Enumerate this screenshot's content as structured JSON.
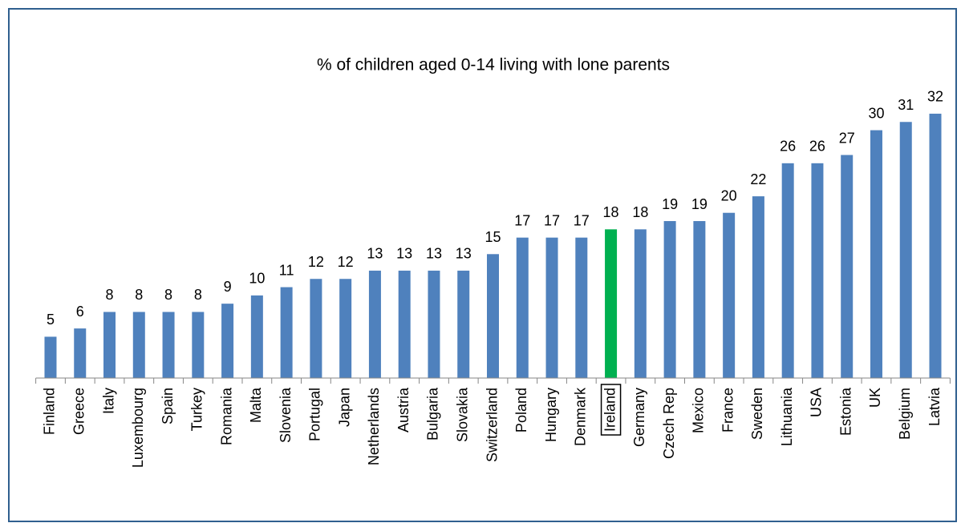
{
  "chart_data": {
    "type": "bar",
    "title": "% of children aged 0-14 living with lone parents",
    "categories": [
      "Finland",
      "Greece",
      "Italy",
      "Luxembourg",
      "Spain",
      "Turkey",
      "Romania",
      "Malta",
      "Slovenia",
      "Portugal",
      "Japan",
      "Netherlands",
      "Austria",
      "Bulgaria",
      "Slovakia",
      "Switzerland",
      "Poland",
      "Hungary",
      "Denmark",
      "Ireland",
      "Germany",
      "Czech Rep",
      "Mexico",
      "France",
      "Sweden",
      "Lithuania",
      "USA",
      "Estonia",
      "UK",
      "Belgium",
      "Latvia"
    ],
    "values": [
      5,
      6,
      8,
      8,
      8,
      8,
      9,
      10,
      11,
      12,
      12,
      13,
      13,
      13,
      13,
      15,
      17,
      17,
      17,
      18,
      18,
      19,
      19,
      20,
      22,
      26,
      26,
      27,
      30,
      31,
      32
    ],
    "colors": [
      "#4f81bd",
      "#4f81bd",
      "#4f81bd",
      "#4f81bd",
      "#4f81bd",
      "#4f81bd",
      "#4f81bd",
      "#4f81bd",
      "#4f81bd",
      "#4f81bd",
      "#4f81bd",
      "#4f81bd",
      "#4f81bd",
      "#4f81bd",
      "#4f81bd",
      "#4f81bd",
      "#4f81bd",
      "#4f81bd",
      "#4f81bd",
      "#00b050",
      "#4f81bd",
      "#4f81bd",
      "#4f81bd",
      "#4f81bd",
      "#4f81bd",
      "#4f81bd",
      "#4f81bd",
      "#4f81bd",
      "#4f81bd",
      "#4f81bd",
      "#4f81bd"
    ],
    "ylim": [
      0,
      35
    ]
  }
}
